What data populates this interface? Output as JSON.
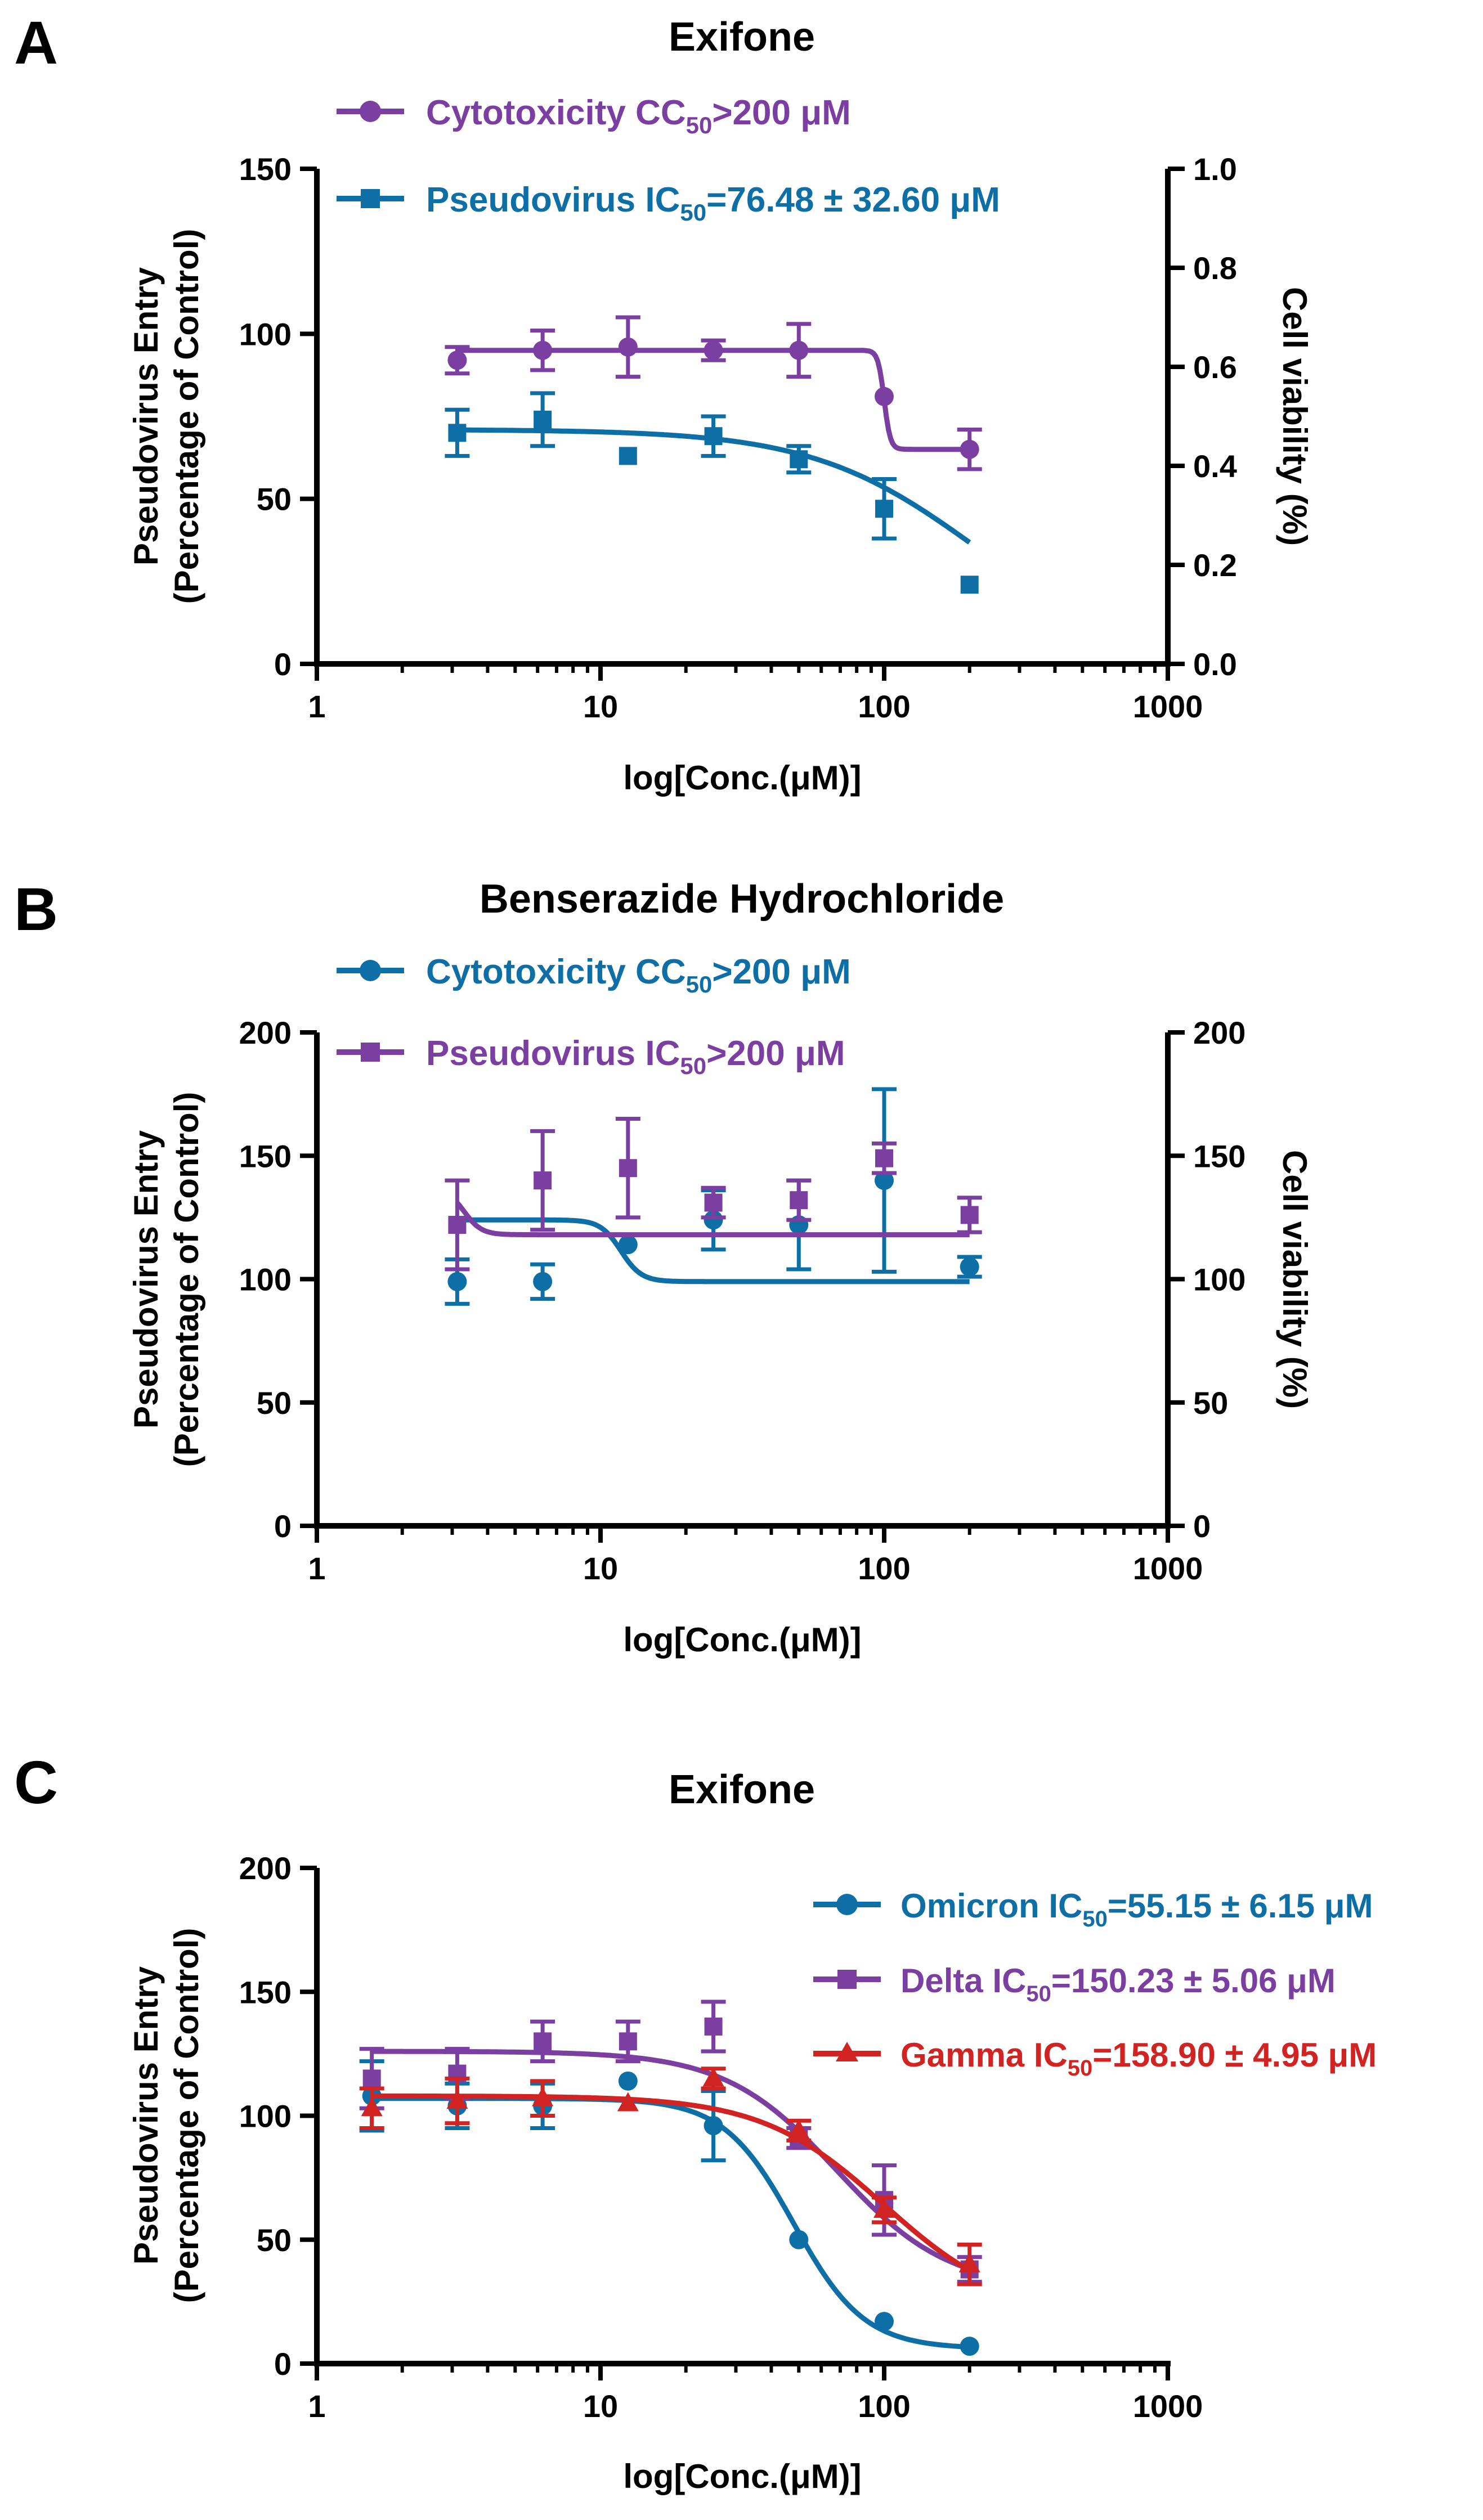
{
  "colors": {
    "purple": "#7a3fa0",
    "blue": "#0e6fa6",
    "red": "#d22323",
    "axis": "#000000"
  },
  "chart_data": [
    {
      "panel": "A",
      "type": "scatter",
      "title": "Exifone",
      "xlabel": "log[Conc.(μM)]",
      "xscale": "log",
      "xlim": [
        1,
        1000
      ],
      "x_ticks": [
        1,
        10,
        100,
        1000
      ],
      "x_tick_labels": [
        "1",
        "10",
        "100",
        "1000"
      ],
      "ylabel": [
        "Pseudovirus Entry",
        "(Percentage of Control)"
      ],
      "ylim": [
        0,
        150
      ],
      "y_ticks": [
        0,
        50,
        100,
        150
      ],
      "y_tick_labels": [
        "0",
        "50",
        "100",
        "150"
      ],
      "y2label": "Cell viability (%)",
      "y2lim": [
        0,
        1.0
      ],
      "y2_ticks": [
        0,
        0.2,
        0.4,
        0.6,
        0.8,
        1.0
      ],
      "y2_tick_labels": [
        "0.0",
        "0.2",
        "0.4",
        "0.6",
        "0.8",
        "1.0"
      ],
      "legend_position": "top-left",
      "series": [
        {
          "name": "Cytotoxicity",
          "legend": {
            "pre": "Cytotoxicity CC",
            "sub": "50",
            "post": ">200 μM"
          },
          "color": "purple",
          "marker": "circle",
          "x": [
            3.125,
            6.25,
            12.5,
            25,
            50,
            100,
            200
          ],
          "y": [
            92,
            95,
            96,
            95,
            95,
            81,
            65
          ],
          "err": [
            4,
            6,
            9,
            3,
            8,
            0,
            6
          ],
          "fit": {
            "kind": "step",
            "top": 95,
            "bottom": 65,
            "x50": 100,
            "hill": 40,
            "from": 3.125,
            "to": 200
          }
        },
        {
          "name": "Pseudovirus",
          "legend": {
            "pre": "Pseudovirus IC",
            "sub": "50",
            "post": "=76.48 ± 32.60 μM"
          },
          "color": "blue",
          "marker": "square",
          "x": [
            3.125,
            6.25,
            12.5,
            25,
            50,
            100,
            200
          ],
          "y": [
            70,
            74,
            63,
            69,
            62,
            47,
            24
          ],
          "err": [
            7,
            8,
            0,
            6,
            4,
            9,
            0
          ],
          "fit": {
            "kind": "hill",
            "top": 71,
            "bottom": 0,
            "x50": 210,
            "hill": 1.5,
            "from": 3.125,
            "to": 200
          }
        }
      ]
    },
    {
      "panel": "B",
      "type": "scatter",
      "title": "Benserazide Hydrochloride",
      "xlabel": "log[Conc.(μM)]",
      "xscale": "log",
      "xlim": [
        1,
        1000
      ],
      "x_ticks": [
        1,
        10,
        100,
        1000
      ],
      "x_tick_labels": [
        "1",
        "10",
        "100",
        "1000"
      ],
      "ylabel": [
        "Pseudovirus Entry",
        "(Percentage of Control)"
      ],
      "ylim": [
        0,
        200
      ],
      "y_ticks": [
        0,
        50,
        100,
        150,
        200
      ],
      "y_tick_labels": [
        "0",
        "50",
        "100",
        "150",
        "200"
      ],
      "y2label": "Cell viability (%)",
      "y2lim": [
        0,
        200
      ],
      "y2_ticks": [
        0,
        50,
        100,
        150,
        200
      ],
      "y2_tick_labels": [
        "0",
        "50",
        "100",
        "150",
        "200"
      ],
      "legend_position": "top-left",
      "series": [
        {
          "name": "Cytotoxicity",
          "legend": {
            "pre": "Cytotoxicity CC",
            "sub": "50",
            "post": ">200 μM"
          },
          "color": "blue",
          "marker": "circle",
          "x": [
            3.125,
            6.25,
            12.5,
            25,
            50,
            100,
            200
          ],
          "y": [
            99,
            99,
            114,
            124,
            122,
            140,
            105
          ],
          "err": [
            9,
            7,
            0,
            12,
            18,
            37,
            4
          ],
          "fit": {
            "kind": "step",
            "top": 124,
            "bottom": 99,
            "x50": 11.8,
            "hill": 12,
            "from": 3.125,
            "to": 200
          }
        },
        {
          "name": "Pseudovirus",
          "legend": {
            "pre": "Pseudovirus IC",
            "sub": "50",
            "post": ">200 μM"
          },
          "color": "purple",
          "marker": "square",
          "x": [
            3.125,
            6.25,
            12.5,
            25,
            50,
            100,
            200
          ],
          "y": [
            122,
            140,
            145,
            131,
            132,
            149,
            126
          ],
          "err": [
            18,
            20,
            20,
            6,
            8,
            6,
            7
          ],
          "fit": {
            "kind": "step",
            "top": 137,
            "bottom": 118,
            "x50": 3.3,
            "hill": 14,
            "from": 3.125,
            "to": 200
          }
        }
      ]
    },
    {
      "panel": "C",
      "type": "scatter",
      "title": "Exifone",
      "xlabel": "log[Conc.(μM)]",
      "xscale": "log",
      "xlim": [
        1,
        1000
      ],
      "x_ticks": [
        1,
        10,
        100,
        1000
      ],
      "x_tick_labels": [
        "1",
        "10",
        "100",
        "1000"
      ],
      "ylabel": [
        "Pseudovirus Entry",
        "(Percentage of Control)"
      ],
      "ylim": [
        0,
        200
      ],
      "y_ticks": [
        0,
        50,
        100,
        150,
        200
      ],
      "y_tick_labels": [
        "0",
        "50",
        "100",
        "150",
        "200"
      ],
      "legend_position": "top-right",
      "series": [
        {
          "name": "Omicron",
          "legend": {
            "pre": "Omicron IC",
            "sub": "50",
            "post": "=55.15 ± 6.15 μM"
          },
          "color": "blue",
          "marker": "circle",
          "x": [
            1.5625,
            3.125,
            6.25,
            12.5,
            25,
            50,
            100,
            200
          ],
          "y": [
            108,
            104,
            104,
            114,
            96,
            50,
            17,
            7
          ],
          "err": [
            14,
            9,
            9,
            0,
            14,
            0,
            0,
            0
          ],
          "fit": {
            "kind": "hill",
            "top": 107,
            "bottom": 6,
            "x50": 48,
            "hill": 3.5,
            "from": 1.5625,
            "to": 200
          }
        },
        {
          "name": "Delta",
          "legend": {
            "pre": "Delta IC",
            "sub": "50",
            "post": "=150.23 ± 5.06 μM"
          },
          "color": "purple",
          "marker": "square",
          "x": [
            1.5625,
            3.125,
            6.25,
            12.5,
            25,
            50,
            100,
            200
          ],
          "y": [
            115,
            117,
            130,
            130,
            136,
            91,
            66,
            38
          ],
          "err": [
            12,
            10,
            8,
            8,
            10,
            4,
            14,
            5
          ],
          "fit": {
            "kind": "hill",
            "top": 126,
            "bottom": 30,
            "x50": 68,
            "hill": 2.2,
            "from": 1.5625,
            "to": 200
          }
        },
        {
          "name": "Gamma",
          "legend": {
            "pre": "Gamma IC",
            "sub": "50",
            "post": "=158.90 ± 4.95 μM"
          },
          "color": "red",
          "marker": "triangle",
          "x": [
            1.5625,
            3.125,
            6.25,
            12.5,
            25,
            50,
            100,
            200
          ],
          "y": [
            103,
            106,
            107,
            105,
            115,
            94,
            62,
            40
          ],
          "err": [
            8,
            9,
            7,
            0,
            4,
            4,
            5,
            8
          ],
          "fit": {
            "kind": "hill",
            "top": 108,
            "bottom": 20,
            "x50": 100,
            "hill": 2.0,
            "from": 1.5625,
            "to": 200
          }
        }
      ]
    }
  ]
}
